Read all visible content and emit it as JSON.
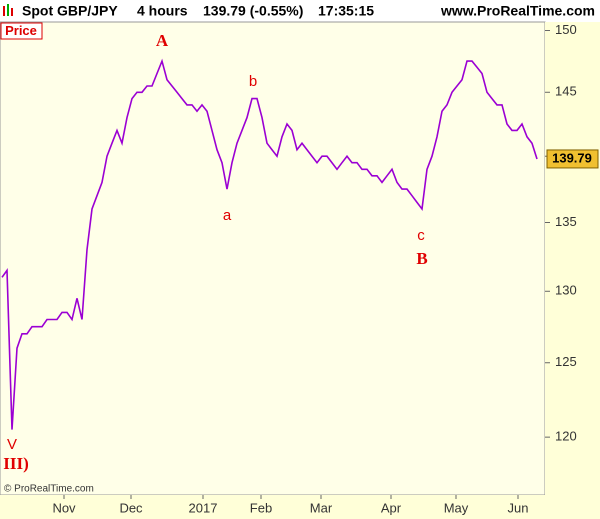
{
  "chart_data": {
    "type": "line",
    "title": "Spot GBP/JPY",
    "timeframe": "4 hours",
    "quote": "139.79 (-0.55%)",
    "time": "17:35:15",
    "site": "www.ProRealTime.com",
    "panel_label": "Price",
    "copyright": "© ProRealTime.com",
    "last_price": 139.79,
    "log_scale": true,
    "ylim": [
      116.25,
      150.7
    ],
    "yticks": [
      120,
      125,
      130,
      135,
      140,
      145,
      150
    ],
    "xlim": [
      -0.4,
      108.6
    ],
    "xticks": [
      {
        "value": 12.4,
        "label": "Nov"
      },
      {
        "value": 25.8,
        "label": "Dec"
      },
      {
        "value": 40.2,
        "label": "2017"
      },
      {
        "value": 51.8,
        "label": "Feb"
      },
      {
        "value": 63.8,
        "label": "Mar"
      },
      {
        "value": 77.8,
        "label": "Apr"
      },
      {
        "value": 90.8,
        "label": "May"
      },
      {
        "value": 103.2,
        "label": "Jun"
      }
    ],
    "series": [
      {
        "color": "#9b00d3",
        "values": [
          131,
          131.5,
          120.5,
          126,
          127,
          127,
          127.5,
          127.5,
          127.5,
          128,
          128,
          128,
          128.5,
          128.5,
          128,
          129.5,
          128,
          133,
          136,
          137,
          138,
          140,
          141,
          142,
          141,
          143,
          144.5,
          145,
          145,
          145.5,
          145.5,
          146.5,
          147.5,
          146,
          145.5,
          145,
          144.5,
          144,
          144,
          143.5,
          144,
          143.5,
          142,
          140.5,
          139.5,
          137.5,
          139.5,
          141,
          142,
          143,
          144.5,
          144.5,
          143,
          141,
          140.5,
          140,
          141.5,
          142.5,
          142,
          140.5,
          141,
          140.5,
          140,
          139.5,
          140,
          140,
          139.5,
          139,
          139.5,
          140,
          139.5,
          139.5,
          139,
          139,
          138.5,
          138.5,
          138,
          138.5,
          139,
          138,
          137.5,
          137.5,
          137,
          136.5,
          136,
          139,
          140,
          141.5,
          143.5,
          144,
          145,
          145.5,
          146,
          147.5,
          147.5,
          147,
          146.5,
          145,
          144.5,
          144,
          144,
          142.5,
          142,
          142,
          142.5,
          141.5,
          141,
          139.79
        ]
      }
    ],
    "annotations": [
      "A",
      "b",
      "a",
      "c",
      "B",
      "V",
      "III)"
    ]
  }
}
